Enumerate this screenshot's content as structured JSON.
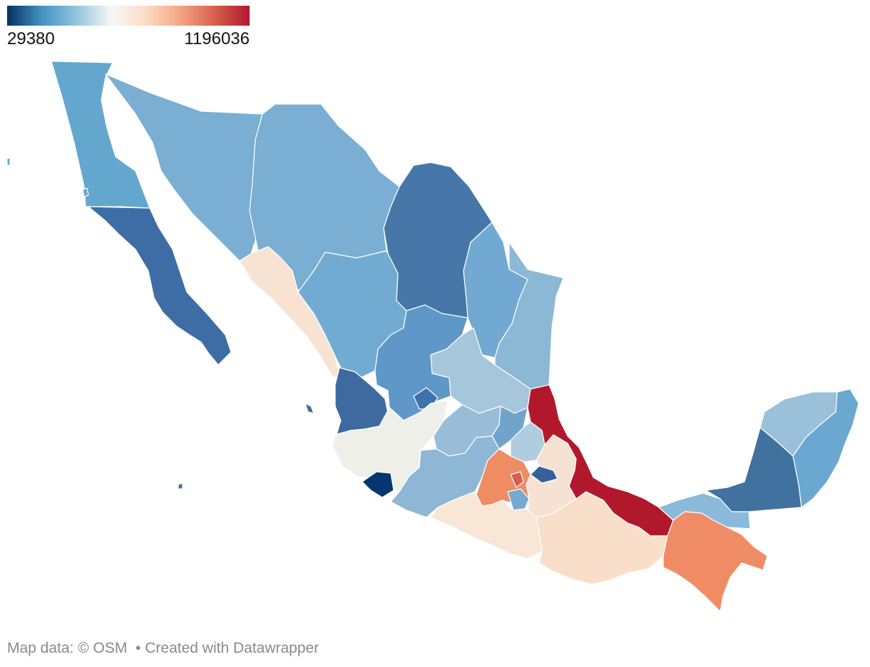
{
  "legend": {
    "min_label": "29380",
    "max_label": "1196036",
    "min_value": 29380,
    "max_value": 1196036,
    "colors": [
      "#053061",
      "#4393c3",
      "#92c5de",
      "#f7f7f7",
      "#fddbc7",
      "#f4a582",
      "#d6604d",
      "#b2182b"
    ]
  },
  "footer": {
    "map_data": "Map data: © OSM",
    "separator": "  •",
    "created_with": " Created with Datawrapper"
  },
  "regions": [
    {
      "id": "baja-california",
      "color": "#63a7cf"
    },
    {
      "id": "baja-california-sur",
      "color": "#3d6da4"
    },
    {
      "id": "sonora",
      "color": "#7aaed2"
    },
    {
      "id": "chihuahua",
      "color": "#7aaed2"
    },
    {
      "id": "coahuila",
      "color": "#4677a8"
    },
    {
      "id": "nuevo-leon",
      "color": "#71a9d2"
    },
    {
      "id": "tamaulipas",
      "color": "#8cb8d6"
    },
    {
      "id": "sinaloa",
      "color": "#f8e3d3"
    },
    {
      "id": "durango",
      "color": "#72abd1"
    },
    {
      "id": "zacatecas",
      "color": "#5f97c8"
    },
    {
      "id": "nayarit",
      "color": "#3e6aa0"
    },
    {
      "id": "aguascalientes",
      "color": "#3f72aa"
    },
    {
      "id": "san-luis-potosi",
      "color": "#a6c6dc"
    },
    {
      "id": "jalisco",
      "color": "#eeefe9"
    },
    {
      "id": "colima",
      "color": "#063570"
    },
    {
      "id": "guanajuato",
      "color": "#97bdd8"
    },
    {
      "id": "queretaro",
      "color": "#70a4cd"
    },
    {
      "id": "hidalgo",
      "color": "#b0cde0"
    },
    {
      "id": "michoacan",
      "color": "#8eb7d5"
    },
    {
      "id": "estado-de-mexico",
      "color": "#ee8c64"
    },
    {
      "id": "ciudad-de-mexico",
      "color": "#d6604d"
    },
    {
      "id": "morelos",
      "color": "#75a9d0"
    },
    {
      "id": "tlaxcala",
      "color": "#35619a"
    },
    {
      "id": "puebla",
      "color": "#f6e2d2"
    },
    {
      "id": "veracruz",
      "color": "#b2182b"
    },
    {
      "id": "guerrero",
      "color": "#f8e6d6"
    },
    {
      "id": "oaxaca",
      "color": "#f9dfca"
    },
    {
      "id": "chiapas",
      "color": "#f08c65"
    },
    {
      "id": "tabasco",
      "color": "#8bb9da"
    },
    {
      "id": "campeche",
      "color": "#41719f"
    },
    {
      "id": "yucatan",
      "color": "#9ac0da"
    },
    {
      "id": "quintana-roo",
      "color": "#6aa8d1"
    }
  ]
}
